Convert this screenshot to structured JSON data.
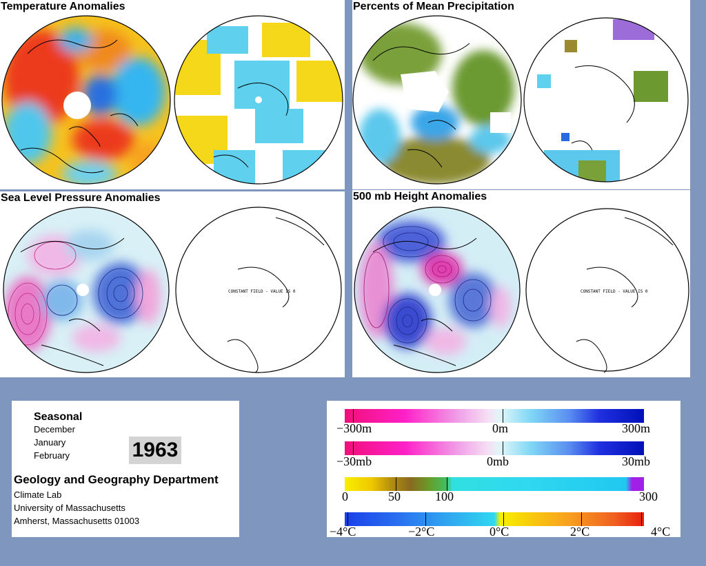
{
  "panels": {
    "temperature": {
      "title": "Temperature Anomalies"
    },
    "precipitation": {
      "title": "Percents of Mean Precipitation"
    },
    "slp": {
      "title": "Sea Level Pressure Anomalies",
      "constant_field": "CONSTANT FIELD - VALUE IS 0"
    },
    "height500": {
      "title": "500 mb Height Anomalies",
      "constant_field": "CONSTANT FIELD - VALUE IS 0"
    }
  },
  "info": {
    "season_label": "Seasonal",
    "months": [
      "December",
      "January",
      "February"
    ],
    "year": "1963",
    "department": "Geology and Geography Department",
    "lab": "Climate Lab",
    "university": "University of Massachusetts",
    "address": "Amherst, Massachusetts 01003"
  },
  "legends": {
    "height": {
      "labels": [
        "−300m",
        "0m",
        "300m"
      ]
    },
    "pressure": {
      "labels": [
        "−30mb",
        "0mb",
        "30mb"
      ]
    },
    "precip": {
      "labels": [
        "0",
        "50",
        "100",
        "300"
      ]
    },
    "temp": {
      "labels": [
        "−4°C",
        "−2°C",
        "0°C",
        "2°C",
        "4°C"
      ]
    }
  },
  "colors": {
    "background": "#7f97bf",
    "warm_anomaly": "#e8361e",
    "cold_anomaly": "#1e4fe0",
    "positive_height": "#e0209a",
    "negative_height": "#2a2ad8"
  }
}
